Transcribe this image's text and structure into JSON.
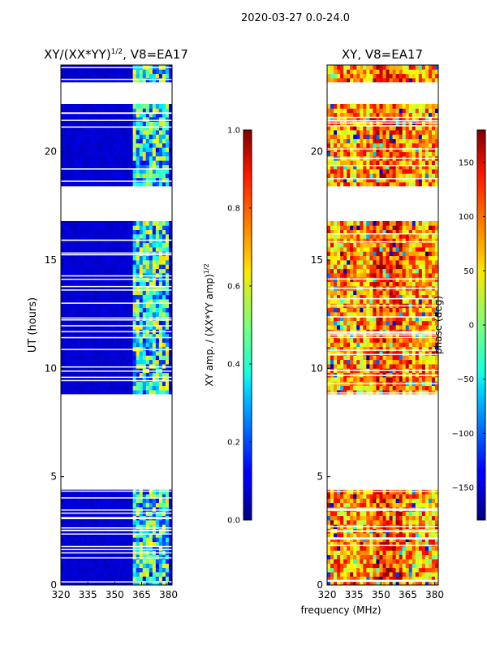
{
  "figure": {
    "suptitle": "2020-03-27 0.0-24.0",
    "xlabel": "frequency (MHz)"
  },
  "chart_data": [
    {
      "type": "heatmap",
      "id": "amp",
      "title": "XY/(XX*YY)",
      "title_exponent": "1/2",
      "title_suffix": ", V8=EA17",
      "xlabel": "frequency (MHz)",
      "ylabel": "UT (hours)",
      "xlim": [
        320,
        382
      ],
      "ylim": [
        0,
        24
      ],
      "xticks": [
        320,
        335,
        350,
        365,
        380
      ],
      "yticks": [
        0,
        5,
        10,
        15,
        20
      ],
      "colorbar": {
        "label": "XY amp. / (XX*YY amp)",
        "label_exponent": "1/2",
        "range": [
          0.0,
          1.0
        ],
        "ticks": [
          "0.0",
          "0.2",
          "0.4",
          "0.6",
          "0.8",
          "1.0"
        ],
        "colormap": "jet"
      },
      "gaps_hours": [
        [
          4.5,
          8.8
        ],
        [
          16.8,
          18.4
        ],
        [
          22.2,
          23.2
        ]
      ]
    },
    {
      "type": "heatmap",
      "id": "phase",
      "title": "XY, V8=EA17",
      "xlabel": "frequency (MHz)",
      "ylabel": "",
      "xlim": [
        320,
        382
      ],
      "ylim": [
        0,
        24
      ],
      "xticks": [
        320,
        335,
        350,
        365,
        380
      ],
      "yticks": [
        0,
        5,
        10,
        15,
        20
      ],
      "colorbar": {
        "label": "phase (deg)",
        "range": [
          -180,
          180
        ],
        "ticks": [
          "150",
          "100",
          "50",
          "0",
          "−50",
          "−100",
          "−150"
        ],
        "colormap": "jet"
      },
      "gaps_hours": [
        [
          4.5,
          8.8
        ],
        [
          16.8,
          18.4
        ],
        [
          22.2,
          23.2
        ]
      ]
    }
  ]
}
